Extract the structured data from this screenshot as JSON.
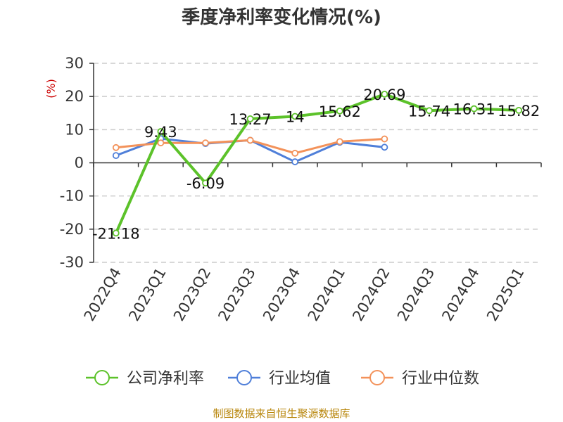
{
  "title": "季度净利率变化情况(%)",
  "source": "制图数据来自恒生聚源数据库",
  "chart_data": {
    "type": "line",
    "title": "季度净利率变化情况(%)",
    "ylabel": "(%)",
    "xlabel": "",
    "ylim": [
      -30,
      30
    ],
    "yticks": [
      30,
      20,
      10,
      0,
      -10,
      -20,
      -30
    ],
    "categories": [
      "2022Q4",
      "2023Q1",
      "2023Q2",
      "2023Q3",
      "2023Q4",
      "2024Q1",
      "2024Q2",
      "2024Q3",
      "2024Q4",
      "2025Q1"
    ],
    "grid": true,
    "legend_position": "bottom",
    "series": [
      {
        "name": "公司净利率",
        "color": "#5cc22a",
        "values": [
          -21.18,
          9.43,
          -6.09,
          13.27,
          14,
          15.62,
          20.69,
          15.74,
          16.31,
          15.82
        ],
        "labels": [
          "-21.18",
          "9.43",
          "-6.09",
          "13.27",
          "14",
          "15.62",
          "20.69",
          "15.74",
          "16.31",
          "15.82"
        ]
      },
      {
        "name": "行业均值",
        "color": "#4f7fd9",
        "values": [
          2.2,
          7.3,
          5.8,
          6.8,
          0.3,
          6.2,
          4.7,
          null,
          null,
          null
        ]
      },
      {
        "name": "行业中位数",
        "color": "#f3925a",
        "values": [
          4.6,
          6.0,
          6.0,
          6.8,
          2.9,
          6.4,
          7.2,
          null,
          null,
          null
        ]
      }
    ]
  }
}
